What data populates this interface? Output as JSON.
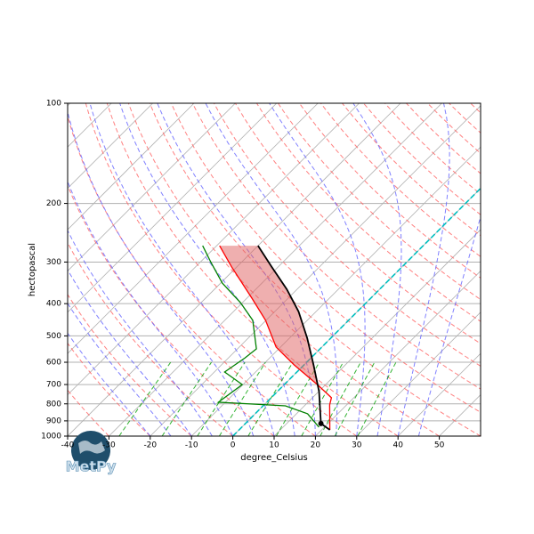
{
  "chart_data": {
    "type": "skewt",
    "xlabel": "degree_Celsius",
    "ylabel": "hectopascal",
    "xlim": [
      -40,
      60
    ],
    "ylim": [
      1000,
      100
    ],
    "xticks": [
      -40,
      -30,
      -20,
      -10,
      0,
      10,
      20,
      30,
      40,
      50
    ],
    "yticks": [
      100,
      200,
      300,
      400,
      500,
      600,
      700,
      800,
      900,
      1000
    ],
    "grid": true,
    "isotherm_highlight": 0,
    "logo_text": "MetPy",
    "series": [
      {
        "color": "#ff0000",
        "pressure": [
          958,
          806,
          767,
          704,
          611,
          540,
          449,
          385,
          310,
          268
        ],
        "values": [
          22.0,
          15.9,
          14.6,
          8.4,
          -2.4,
          -11.1,
          -20.1,
          -28.8,
          -41.3,
          -49.3
        ]
      },
      {
        "color": "#008000",
        "pressure": [
          940,
          857,
          811,
          791,
          700,
          642,
          582,
          547,
          449,
          397,
          347,
          301,
          268
        ],
        "values": [
          18.7,
          12.7,
          5.4,
          -11.7,
          -10.2,
          -17.5,
          -16.0,
          -15.4,
          -23.2,
          -30.5,
          -39.6,
          -47.3,
          -53.4
        ]
      },
      {
        "color": "#000000",
        "pressure": [
          958,
          917,
          735,
          611,
          508,
          422,
          362,
          310,
          268
        ],
        "values": [
          22.0,
          18.3,
          10.1,
          2.3,
          -5.7,
          -14.3,
          -22.5,
          -31.6,
          -40.0
        ]
      }
    ]
  }
}
